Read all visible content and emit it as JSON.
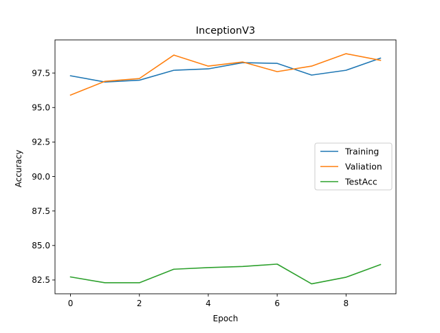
{
  "chart_data": {
    "type": "line",
    "title": "InceptionV3",
    "xlabel": "Epoch",
    "ylabel": "Accuracy",
    "x": [
      0,
      1,
      2,
      3,
      4,
      5,
      6,
      7,
      8,
      9
    ],
    "xlim": [
      -0.45,
      9.45
    ],
    "ylim": [
      81.5,
      99.9
    ],
    "xticks": [
      0,
      2,
      4,
      6,
      8
    ],
    "xtick_labels": [
      "0",
      "2",
      "4",
      "6",
      "8"
    ],
    "yticks": [
      82.5,
      85.0,
      87.5,
      90.0,
      92.5,
      95.0,
      97.5
    ],
    "ytick_labels": [
      "82.5",
      "85.0",
      "87.5",
      "90.0",
      "92.5",
      "95.0",
      "97.5"
    ],
    "grid": false,
    "legend_position": "center-right",
    "series": [
      {
        "name": "Training",
        "color": "#1f77b4",
        "values": [
          97.3,
          96.85,
          96.98,
          97.7,
          97.8,
          98.25,
          98.2,
          97.35,
          97.7,
          98.58
        ]
      },
      {
        "name": "Valiation",
        "color": "#ff7f0e",
        "values": [
          95.9,
          96.9,
          97.1,
          98.8,
          98.0,
          98.3,
          97.6,
          98.0,
          98.9,
          98.42
        ]
      },
      {
        "name": "TestAcc",
        "color": "#2ca02c",
        "values": [
          82.72,
          82.3,
          82.3,
          83.28,
          83.4,
          83.48,
          83.65,
          82.22,
          82.7,
          83.62
        ]
      }
    ]
  }
}
